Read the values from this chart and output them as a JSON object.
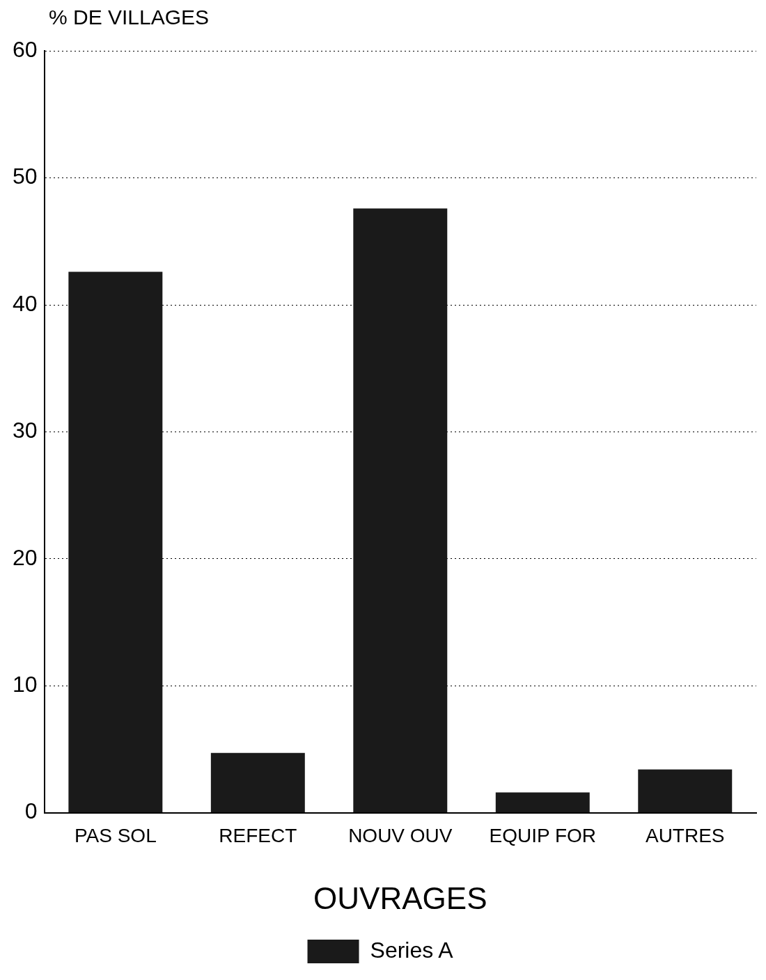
{
  "chart_data": {
    "type": "bar",
    "ylabel": "% DE VILLAGES",
    "xlabel": "OUVRAGES",
    "categories": [
      "PAS SOL",
      "REFECT",
      "NOUV OUV",
      "EQUIP FOR",
      "AUTRES"
    ],
    "series": [
      {
        "name": "Series A",
        "color": "#1a1a1a",
        "values": [
          42.6,
          4.7,
          47.6,
          1.6,
          3.4
        ]
      }
    ],
    "ylim": [
      0,
      60
    ],
    "yticks": [
      0,
      10,
      20,
      30,
      40,
      50,
      60
    ],
    "grid": "y",
    "legend": "bottom"
  }
}
